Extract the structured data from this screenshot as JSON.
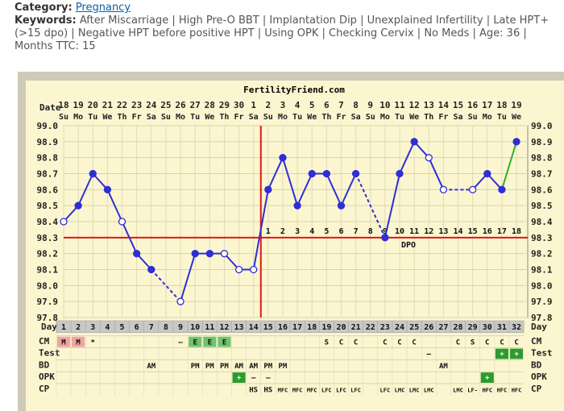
{
  "meta": {
    "category_label": "Category:",
    "category_value": "Pregnancy",
    "keywords_label": "Keywords:",
    "keywords_value": "After Miscarriage | High Pre-O BBT | Implantation Dip | Unexplained Infertility | Late HPT+ (>15 dpo) | Negative HPT before positive HPT | Using OPK | Checking Cervix | No Meds | Age: 36 | Months TTC: 15"
  },
  "chart_data": {
    "type": "line",
    "title": "FertilityFriend.com",
    "ylabel": "",
    "xlabel": "",
    "ylim": [
      97.8,
      99.0
    ],
    "y_ticks": [
      "99.0",
      "98.9",
      "98.8",
      "98.7",
      "98.6",
      "98.5",
      "98.4",
      "98.3",
      "98.2",
      "98.1",
      "98.0",
      "97.9",
      "97.8"
    ],
    "date_row_label": "Date",
    "day_row_label": "Day",
    "dates": [
      "18",
      "19",
      "20",
      "21",
      "22",
      "23",
      "24",
      "25",
      "26",
      "27",
      "28",
      "29",
      "30",
      "1",
      "2",
      "3",
      "4",
      "5",
      "6",
      "7",
      "8",
      "9",
      "10",
      "11",
      "12",
      "13",
      "14",
      "15",
      "16",
      "17",
      "18",
      "19"
    ],
    "weekdays": [
      "Su",
      "Mo",
      "Tu",
      "We",
      "Th",
      "Fr",
      "Sa",
      "Su",
      "Mo",
      "Tu",
      "We",
      "Th",
      "Fr",
      "Sa",
      "Su",
      "Mo",
      "Tu",
      "We",
      "Th",
      "Fr",
      "Sa",
      "Su",
      "Mo",
      "Tu",
      "We",
      "Th",
      "Fr",
      "Sa",
      "Su",
      "Mo",
      "Tu",
      "We"
    ],
    "cycle_days": [
      "1",
      "2",
      "3",
      "4",
      "5",
      "6",
      "7",
      "8",
      "9",
      "10",
      "11",
      "12",
      "13",
      "14",
      "15",
      "16",
      "17",
      "18",
      "19",
      "20",
      "21",
      "22",
      "23",
      "24",
      "25",
      "26",
      "27",
      "28",
      "29",
      "30",
      "31",
      "32"
    ],
    "temperatures": [
      98.4,
      98.5,
      98.7,
      98.6,
      98.4,
      98.2,
      98.1,
      null,
      97.9,
      98.2,
      98.2,
      98.2,
      98.1,
      98.1,
      98.6,
      98.8,
      98.5,
      98.7,
      98.7,
      98.5,
      98.7,
      null,
      98.3,
      98.7,
      98.9,
      98.8,
      98.6,
      null,
      98.6,
      98.7,
      98.6,
      98.9
    ],
    "open_markers": [
      true,
      false,
      false,
      false,
      true,
      false,
      false,
      null,
      true,
      false,
      false,
      true,
      true,
      true,
      false,
      false,
      false,
      false,
      false,
      false,
      false,
      null,
      false,
      false,
      false,
      true,
      true,
      null,
      true,
      false,
      false,
      false
    ],
    "coverline": 98.3,
    "ovulation_day": "14",
    "dpo_labels": [
      "1",
      "2",
      "3",
      "4",
      "5",
      "6",
      "7",
      "8",
      "9",
      "10",
      "11",
      "12",
      "13",
      "14",
      "15",
      "16",
      "17",
      "18"
    ],
    "dpo_marker": "DPO",
    "rows": [
      {
        "label": "CM",
        "cells": [
          "M",
          "M",
          "*",
          "",
          "",
          "",
          "",
          "",
          "–",
          "E",
          "E",
          "E",
          "",
          "",
          "",
          "",
          "",
          "",
          "S",
          "C",
          "C",
          "",
          "C",
          "C",
          "C",
          "",
          "",
          "C",
          "S",
          "C",
          "C",
          "C"
        ]
      },
      {
        "label": "Test",
        "cells": [
          "",
          "",
          "",
          "",
          "",
          "",
          "",
          "",
          "",
          "",
          "",
          "",
          "",
          "",
          "",
          "",
          "",
          "",
          "",
          "",
          "",
          "",
          "",
          "",
          "",
          "–",
          "",
          "",
          "",
          "",
          "+",
          "+"
        ]
      },
      {
        "label": "BD",
        "cells": [
          "",
          "",
          "",
          "",
          "",
          "",
          "AM",
          "",
          "",
          "PM",
          "PM",
          "PM",
          "AM",
          "AM",
          "PM",
          "PM",
          "",
          "",
          "",
          "",
          "",
          "",
          "",
          "",
          "",
          "",
          "AM",
          "",
          "",
          "",
          "",
          ""
        ]
      },
      {
        "label": "OPK",
        "cells": [
          "",
          "",
          "",
          "",
          "",
          "",
          "",
          "",
          "",
          "",
          "",
          "",
          "+",
          "–",
          "–",
          "",
          "",
          "",
          "",
          "",
          "",
          "",
          "",
          "",
          "",
          "",
          "",
          "",
          "",
          "+",
          "",
          ""
        ]
      },
      {
        "label": "CP",
        "cells": [
          "",
          "",
          "",
          "",
          "",
          "",
          "",
          "",
          "",
          "",
          "",
          "",
          "",
          "HS",
          "HS",
          "MFC",
          "MFC",
          "MFC",
          "LFC",
          "LFC",
          "LFC",
          "",
          "LFC",
          "LMC",
          "LMC",
          "LMC",
          "",
          "LMC",
          "LF-",
          "HFC",
          "HFC",
          "HFC"
        ]
      }
    ],
    "colors": {
      "frame": "#cfc9b8",
      "plot_bg": "#fbf6cf",
      "line": "#2e2ed6",
      "last_segment": "#2fb02f",
      "coverline": "#e01414",
      "ovulation": "#e01414",
      "menstrual_cell": "#f2a3a3",
      "fertile_cell": "#6ec46e",
      "test_positive_cell": "#2e9a2e",
      "gray_row": "#c8c8c8"
    }
  }
}
